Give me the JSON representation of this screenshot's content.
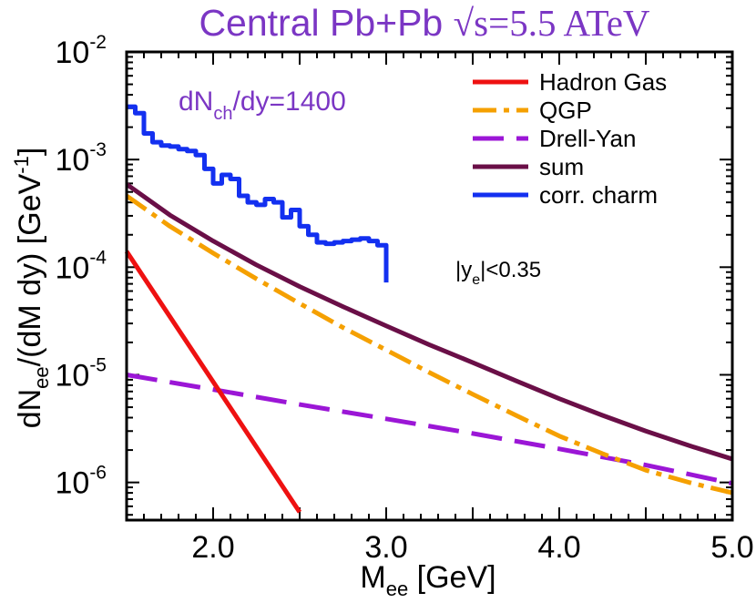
{
  "chart_data": {
    "type": "line",
    "title": {
      "prefix": "Central Pb+Pb ",
      "sqrt_sign": "√",
      "s": "s",
      "energy": "=5.5 ATeV"
    },
    "annotation": {
      "main": "dN",
      "sub": "ch",
      "rest": "/dy=1400"
    },
    "cut_label": {
      "pre": "|y",
      "sub": "e",
      "post": "|<0.35"
    },
    "xlabel": {
      "main": "M",
      "sub": "ee",
      "unit": " [GeV]"
    },
    "ylabel": {
      "main": "dN",
      "sub": "ee",
      "mid": "/(dM dy) [GeV",
      "sup": "-1",
      "end": "]"
    },
    "xlim": [
      1.5,
      5.0
    ],
    "ylim_log10": [
      -6.35,
      -2.0
    ],
    "x_ticks": [
      "2.0",
      "3.0",
      "4.0",
      "5.0"
    ],
    "y_ticks": [
      {
        "base": "10",
        "exp": "-2",
        "value": -2
      },
      {
        "base": "10",
        "exp": "-3",
        "value": -3
      },
      {
        "base": "10",
        "exp": "-4",
        "value": -4
      },
      {
        "base": "10",
        "exp": "-5",
        "value": -5
      },
      {
        "base": "10",
        "exp": "-6",
        "value": -6
      }
    ],
    "series": [
      {
        "name": "Hadron Gas",
        "color": "#ee1111",
        "dash": "",
        "kind": "line",
        "x": [
          1.5,
          2.5
        ],
        "y": [
          0.00014,
          5.3e-07
        ]
      },
      {
        "name": "QGP",
        "color": "#f5a000",
        "dash": "dashdot",
        "kind": "line",
        "x": [
          1.5,
          1.75,
          2.0,
          2.25,
          2.5,
          2.75,
          3.0,
          3.25,
          3.5,
          3.75,
          4.0,
          4.25,
          4.5,
          4.75,
          5.0
        ],
        "y": [
          0.00046,
          0.00024,
          0.000135,
          7.8e-05,
          4.6e-05,
          2.75e-05,
          1.7e-05,
          1.05e-05,
          6.6e-06,
          4.2e-06,
          2.7e-06,
          1.85e-06,
          1.3e-06,
          1e-06,
          8e-07
        ]
      },
      {
        "name": "Drell-Yan",
        "color": "#9b16d6",
        "dash": "long",
        "kind": "line",
        "x": [
          1.5,
          2.0,
          2.5,
          3.0,
          3.5,
          4.0,
          4.5,
          5.0
        ],
        "y": [
          1e-05,
          7.3e-06,
          5.3e-06,
          3.9e-06,
          2.85e-06,
          2.05e-06,
          1.45e-06,
          9.8e-07
        ]
      },
      {
        "name": "sum",
        "color": "#6a0f47",
        "dash": "",
        "kind": "line",
        "x": [
          1.5,
          1.75,
          2.0,
          2.25,
          2.5,
          2.75,
          3.0,
          3.25,
          3.5,
          3.75,
          4.0,
          4.25,
          4.5,
          4.75,
          5.0
        ],
        "y": [
          0.00059,
          0.000305,
          0.000175,
          0.000105,
          6.6e-05,
          4.3e-05,
          2.85e-05,
          1.9e-05,
          1.3e-05,
          8.8e-06,
          6e-06,
          4.2e-06,
          3e-06,
          2.2e-06,
          1.65e-06
        ]
      },
      {
        "name": "corr. charm",
        "color": "#1330f0",
        "dash": "",
        "kind": "step",
        "x": [
          1.5,
          1.55,
          1.6,
          1.65,
          1.7,
          1.75,
          1.8,
          1.85,
          1.9,
          1.95,
          2.0,
          2.05,
          2.1,
          2.15,
          2.2,
          2.25,
          2.3,
          2.35,
          2.4,
          2.45,
          2.5,
          2.55,
          2.6,
          2.65,
          2.7,
          2.75,
          2.8,
          2.85,
          2.9,
          2.95,
          3.0
        ],
        "y": [
          0.0031,
          0.0027,
          0.00175,
          0.00145,
          0.00135,
          0.00132,
          0.00125,
          0.0012,
          0.0011,
          0.00082,
          0.0006,
          0.00072,
          0.00066,
          0.00046,
          0.0004,
          0.00038,
          0.00043,
          0.0004,
          0.00029,
          0.00034,
          0.00024,
          0.0002,
          0.00017,
          0.000165,
          0.00017,
          0.000175,
          0.00018,
          0.000185,
          0.000175,
          0.00016,
          7.2e-05
        ]
      }
    ],
    "legend_position": "top-right",
    "grid": false
  }
}
